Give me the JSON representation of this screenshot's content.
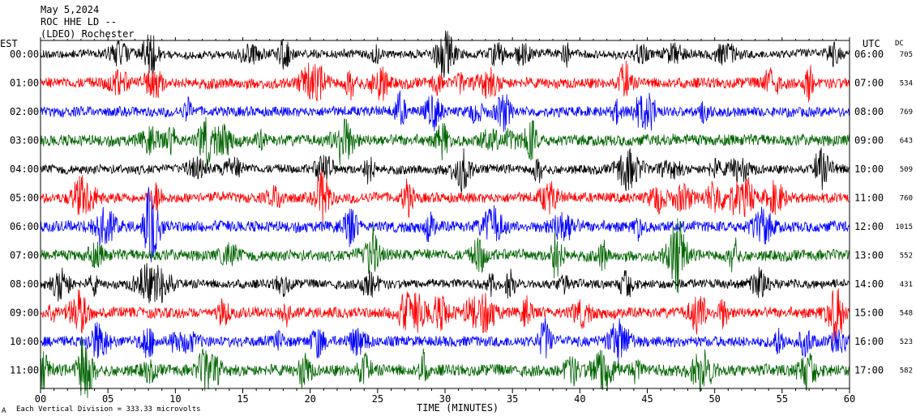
{
  "header": {
    "date": "May 5,2024",
    "station": "ROC HHE LD --",
    "location": "(LDEO) Rochester"
  },
  "footer": {
    "scale_note": "Each Vertical Division =  333.33 microvolts",
    "corner_mark": "A"
  },
  "chart_data": {
    "type": "line",
    "chart_kind": "helicorder seismogram",
    "xlabel": "TIME (MINUTES)",
    "xlim": [
      0,
      60
    ],
    "x_ticks": [
      "00",
      "05",
      "10",
      "15",
      "20",
      "25",
      "30",
      "35",
      "40",
      "45",
      "50",
      "55",
      "60"
    ],
    "left_axis_label": "EST",
    "right_axis_label": "UTC",
    "dc_label": "DC",
    "grid": false,
    "trace_colors": [
      "#000000",
      "#ff0000",
      "#0000ff",
      "#006400"
    ],
    "series": [
      {
        "est": "00:00",
        "utc": "06:00",
        "dc": "705",
        "color": "#000000",
        "activity": 0.5
      },
      {
        "est": "01:00",
        "utc": "07:00",
        "dc": "534",
        "color": "#ff0000",
        "activity": 0.85
      },
      {
        "est": "02:00",
        "utc": "08:00",
        "dc": "769",
        "color": "#0000ff",
        "activity": 0.75
      },
      {
        "est": "03:00",
        "utc": "09:00",
        "dc": "643",
        "color": "#006400",
        "activity": 0.95
      },
      {
        "est": "04:00",
        "utc": "10:00",
        "dc": "509",
        "color": "#000000",
        "activity": 0.6
      },
      {
        "est": "05:00",
        "utc": "11:00",
        "dc": "760",
        "color": "#ff0000",
        "activity": 0.8
      },
      {
        "est": "06:00",
        "utc": "12:00",
        "dc": "1015",
        "color": "#0000ff",
        "activity": 0.9
      },
      {
        "est": "07:00",
        "utc": "13:00",
        "dc": "552",
        "color": "#006400",
        "activity": 0.9
      },
      {
        "est": "08:00",
        "utc": "14:00",
        "dc": "431",
        "color": "#000000",
        "activity": 0.6
      },
      {
        "est": "09:00",
        "utc": "15:00",
        "dc": "548",
        "color": "#ff0000",
        "activity": 0.85
      },
      {
        "est": "10:00",
        "utc": "16:00",
        "dc": "523",
        "color": "#0000ff",
        "activity": 0.85
      },
      {
        "est": "11:00",
        "utc": "17:00",
        "dc": "582",
        "color": "#006400",
        "activity": 1.0
      }
    ]
  }
}
